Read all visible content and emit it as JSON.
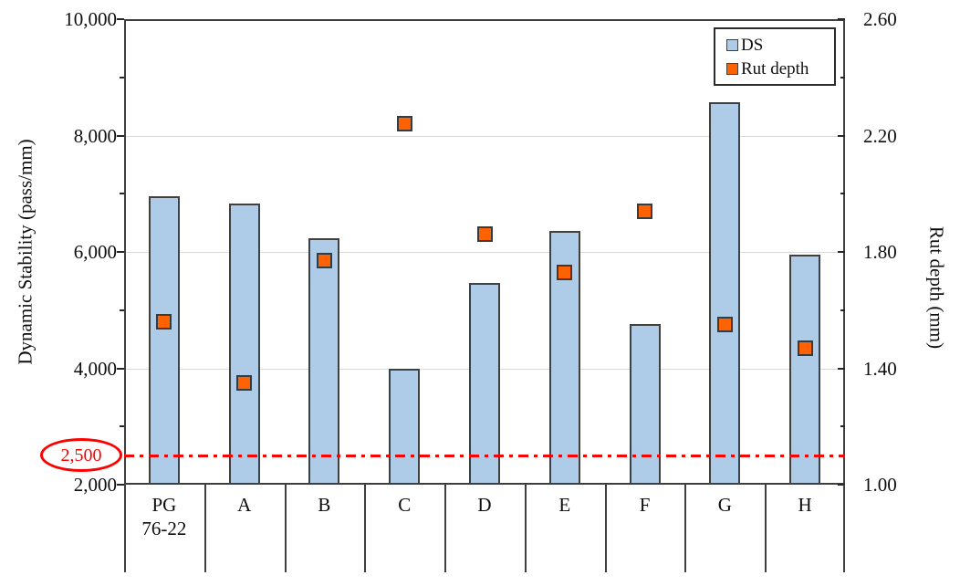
{
  "chart_data": {
    "type": "bar",
    "subtype": "combo-bar-scatter-dual-axis",
    "categories": [
      "PG 76-22",
      "A",
      "B",
      "C",
      "D",
      "E",
      "F",
      "G",
      "H"
    ],
    "categories_display": [
      "PG\n76-22",
      "A",
      "B",
      "C",
      "D",
      "E",
      "F",
      "G",
      "H"
    ],
    "series": [
      {
        "name": "DS",
        "type": "bar",
        "axis": "left",
        "values": [
          6950,
          6830,
          6240,
          3990,
          5470,
          6360,
          4760,
          8580,
          5950
        ],
        "fill_color": "#AECCE8",
        "border_color": "#404040"
      },
      {
        "name": "Rut depth",
        "type": "scatter",
        "axis": "right",
        "marker": "square",
        "values": [
          1.56,
          1.35,
          1.77,
          2.24,
          1.86,
          1.73,
          1.94,
          1.55,
          1.47
        ],
        "fill_color": "#FF6200",
        "border_color": "#3a3a3a"
      }
    ],
    "left_axis": {
      "label": "Dynamic Stability (pass/mm)",
      "min": 2000,
      "max": 10000,
      "major_step": 2000,
      "minor_step": 1000,
      "tick_labels": [
        "2,000",
        "4,000",
        "6,000",
        "8,000",
        "10,000"
      ]
    },
    "right_axis": {
      "label": "Rut depth (mm)",
      "min": 1.0,
      "max": 2.6,
      "major_step": 0.4,
      "minor_step": 0.2,
      "tick_labels": [
        "1.00",
        "1.40",
        "1.80",
        "2.20",
        "2.60"
      ]
    },
    "threshold": {
      "value": 2500,
      "label": "2,500",
      "color": "#FF0000",
      "line_style": "dash-dot"
    },
    "legend": {
      "position": "top-right",
      "entries": [
        {
          "label": "DS",
          "color": "#AECCE8"
        },
        {
          "label": "Rut depth",
          "color": "#FF6200"
        }
      ]
    },
    "grid": "horizontal-major",
    "gridline_color": "#d9d9d9"
  }
}
